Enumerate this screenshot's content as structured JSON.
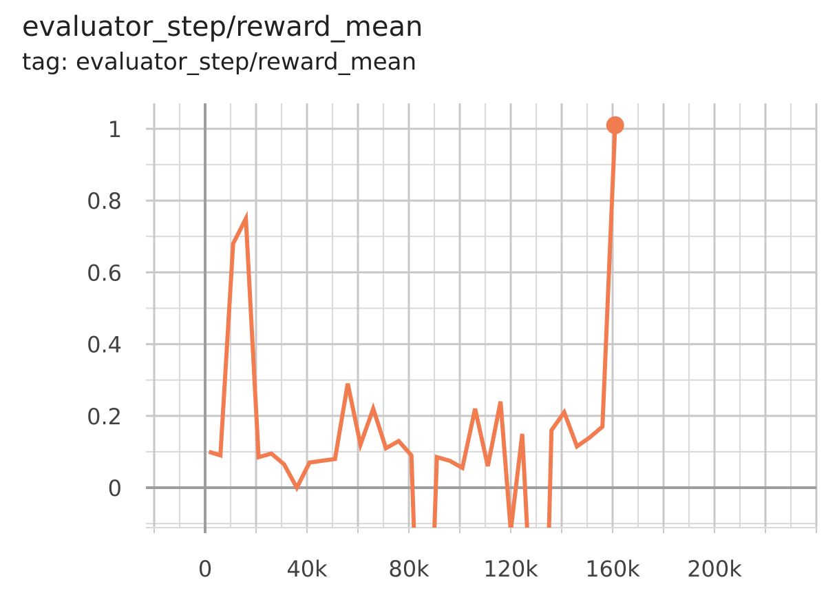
{
  "card": {
    "title": "evaluator_step/reward_mean",
    "tag_line": "tag: evaluator_step/reward_mean"
  },
  "chart_data": {
    "type": "line",
    "xlim": [
      -20000,
      240000
    ],
    "ylim": [
      -0.1,
      1.07
    ],
    "x_ticks": [
      {
        "value": 0,
        "label": "0"
      },
      {
        "value": 40000,
        "label": "40k"
      },
      {
        "value": 80000,
        "label": "80k"
      },
      {
        "value": 120000,
        "label": "120k"
      },
      {
        "value": 160000,
        "label": "160k"
      },
      {
        "value": 200000,
        "label": "200k"
      }
    ],
    "y_ticks": [
      {
        "value": 0,
        "label": "0"
      },
      {
        "value": 0.2,
        "label": "0.2"
      },
      {
        "value": 0.4,
        "label": "0.4"
      },
      {
        "value": 0.6,
        "label": "0.6"
      },
      {
        "value": 0.8,
        "label": "0.8"
      },
      {
        "value": 1,
        "label": "1"
      }
    ],
    "grid": true,
    "color": "#f07c4f",
    "series": [
      {
        "x": [
          1500,
          6000,
          11000,
          16000,
          21000,
          26000,
          31000,
          36000,
          41000,
          46000,
          51000,
          56000,
          61000,
          66000,
          71000,
          76000,
          81000,
          82000,
          90000,
          91000,
          96000,
          101000,
          106000,
          111000,
          116000,
          120000,
          124500,
          126500,
          135000,
          136000,
          141000,
          146000,
          151000,
          156000,
          161000
        ],
        "y": [
          0.1,
          0.09,
          0.68,
          0.75,
          0.085,
          0.095,
          0.065,
          0.0,
          0.07,
          0.075,
          0.08,
          0.29,
          0.12,
          0.22,
          0.11,
          0.13,
          0.09,
          -0.12,
          -0.12,
          0.085,
          0.075,
          0.055,
          0.22,
          0.06,
          0.24,
          -0.12,
          0.15,
          -0.12,
          -0.12,
          0.16,
          0.21,
          0.115,
          0.14,
          0.17,
          1.01
        ]
      }
    ],
    "highlight": {
      "x": 161000,
      "y": 1.01
    }
  }
}
